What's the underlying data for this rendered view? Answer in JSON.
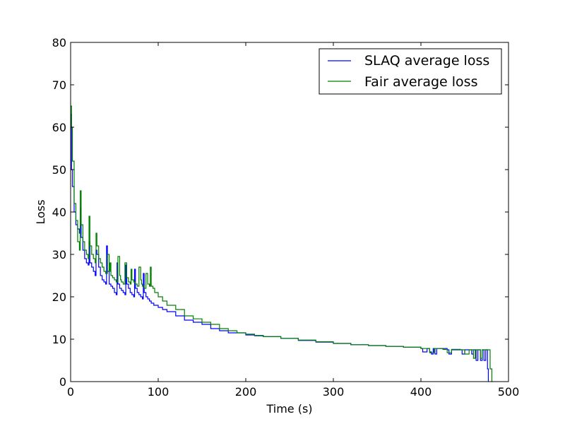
{
  "chart_data": {
    "type": "line",
    "title": "",
    "xlabel": "Time (s)",
    "ylabel": "Loss",
    "xlim": [
      0,
      500
    ],
    "ylim": [
      0,
      80
    ],
    "xticks": [
      0,
      100,
      200,
      300,
      400,
      500
    ],
    "yticks": [
      0,
      10,
      20,
      30,
      40,
      50,
      60,
      70,
      80
    ],
    "grid": false,
    "legend_position": "top-right",
    "series": [
      {
        "name": "SLAQ average loss",
        "color": "#0000ff",
        "x": [
          0,
          1,
          2,
          4,
          6,
          8,
          10,
          11,
          12,
          14,
          16,
          18,
          20,
          21,
          22,
          24,
          26,
          28,
          29,
          30,
          32,
          34,
          36,
          38,
          40,
          41,
          42,
          44,
          46,
          48,
          50,
          52,
          53,
          54,
          56,
          58,
          60,
          62,
          63,
          64,
          66,
          68,
          70,
          72,
          73,
          74,
          76,
          78,
          80,
          82,
          83,
          84,
          86,
          88,
          90,
          92,
          95,
          100,
          105,
          110,
          120,
          130,
          140,
          150,
          160,
          170,
          180,
          190,
          200,
          210,
          220,
          240,
          260,
          280,
          300,
          320,
          340,
          360,
          380,
          400,
          402,
          405,
          407,
          410,
          412,
          414,
          416,
          418,
          420,
          425,
          430,
          432,
          435,
          440,
          445,
          447,
          450,
          455,
          458,
          460,
          463,
          465,
          468,
          470,
          472,
          474,
          476,
          477
        ],
        "values": [
          63,
          50,
          46,
          40,
          37,
          36,
          35,
          41,
          34,
          31,
          29,
          28,
          27.5,
          33,
          28,
          27,
          26,
          25,
          31,
          30,
          27,
          25,
          24,
          23.5,
          23,
          32,
          26,
          23,
          22.5,
          22,
          21,
          20.5,
          28,
          23,
          22,
          21.5,
          21,
          20.5,
          27.5,
          23,
          22,
          21,
          20.5,
          20,
          26.5,
          22,
          21,
          20.5,
          20,
          19.5,
          25.5,
          21,
          20,
          19.5,
          19,
          18.5,
          18,
          17.5,
          17,
          16.5,
          15.5,
          14.5,
          14,
          13.5,
          12.5,
          12,
          11.5,
          11.5,
          11,
          10.8,
          10.6,
          10.2,
          9.7,
          9.3,
          9,
          8.7,
          8.5,
          8.3,
          8.1,
          7.8,
          7,
          7,
          7.8,
          7,
          6.5,
          7.8,
          6.5,
          7.8,
          7.8,
          7.8,
          7.5,
          6.5,
          7.5,
          7.5,
          7.5,
          6.5,
          7.5,
          7.5,
          6.5,
          7.5,
          5,
          7.5,
          5,
          7.5,
          5,
          7.5,
          3,
          0
        ]
      },
      {
        "name": "Fair average loss",
        "color": "#008000",
        "x": [
          0,
          1,
          2,
          4,
          6,
          8,
          10,
          11,
          12,
          14,
          16,
          18,
          20,
          21,
          22,
          24,
          26,
          28,
          29,
          30,
          32,
          34,
          36,
          38,
          40,
          42,
          44,
          45,
          46,
          48,
          50,
          52,
          54,
          56,
          57,
          58,
          60,
          62,
          64,
          66,
          68,
          69,
          70,
          72,
          74,
          76,
          78,
          80,
          81,
          82,
          84,
          86,
          88,
          90,
          91,
          92,
          94,
          96,
          100,
          105,
          110,
          120,
          130,
          140,
          150,
          160,
          170,
          180,
          190,
          200,
          210,
          220,
          240,
          260,
          280,
          300,
          320,
          340,
          360,
          380,
          400,
          405,
          410,
          415,
          420,
          425,
          428,
          430,
          435,
          440,
          445,
          450,
          455,
          458,
          460,
          462,
          465,
          468,
          470,
          472,
          475,
          478,
          479,
          481,
          482
        ],
        "values": [
          65,
          60,
          52,
          42,
          38,
          33,
          31,
          45,
          37,
          33,
          31,
          30,
          29,
          39,
          32,
          30,
          29,
          28,
          35,
          32,
          29,
          28,
          27,
          26,
          25.5,
          30,
          26,
          28,
          25,
          24.5,
          24,
          23.5,
          29.5,
          25,
          24,
          23.5,
          23,
          28,
          24.5,
          23.5,
          23,
          26.5,
          24,
          23.5,
          23,
          22.5,
          27,
          24,
          23,
          22.5,
          22,
          25.5,
          23,
          22.5,
          27,
          22.5,
          22,
          21,
          20,
          19,
          18,
          17,
          15.5,
          14.8,
          14,
          13.5,
          12.5,
          12,
          11.5,
          11.2,
          10.9,
          10.6,
          10.2,
          9.8,
          9.4,
          9,
          8.7,
          8.5,
          8.3,
          8.1,
          7.8,
          7.8,
          6.8,
          7.8,
          7.8,
          7.6,
          7.6,
          6.8,
          7.6,
          7.6,
          7.5,
          6.5,
          7.5,
          7.5,
          5.5,
          7.5,
          7.5,
          5.5,
          7.5,
          7.5,
          7.5,
          7.5,
          3,
          0,
          0
        ]
      }
    ]
  }
}
